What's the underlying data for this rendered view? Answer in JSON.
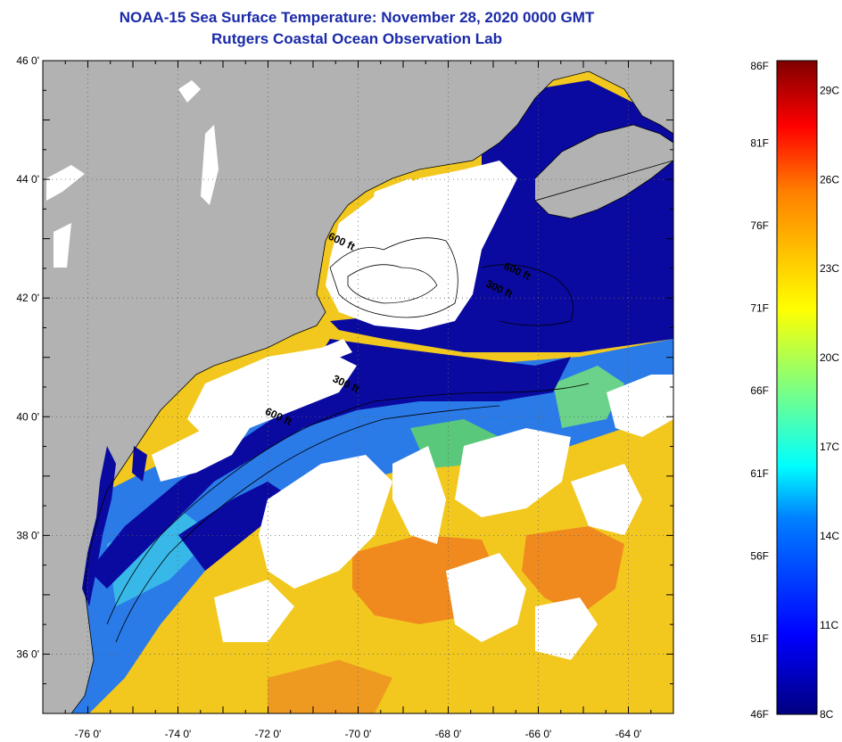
{
  "title": "NOAA-15 Sea Surface Temperature:  November 28, 2020 0000 GMT",
  "subtitle": "Rutgers Coastal Ocean Observation Lab",
  "map": {
    "lon_range": [
      -77,
      -63
    ],
    "lat_range": [
      35,
      46
    ],
    "lon_ticks": [
      {
        "value": -76,
        "label": "-76 0'"
      },
      {
        "value": -74,
        "label": "-74 0'"
      },
      {
        "value": -72,
        "label": "-72 0'"
      },
      {
        "value": -70,
        "label": "-70 0'"
      },
      {
        "value": -68,
        "label": "-68 0'"
      },
      {
        "value": -66,
        "label": "-66 0'"
      },
      {
        "value": -64,
        "label": "-64 0'"
      }
    ],
    "lat_ticks": [
      {
        "value": 46,
        "label": "46 0'"
      },
      {
        "value": 44,
        "label": "44 0'"
      },
      {
        "value": 42,
        "label": "42 0'"
      },
      {
        "value": 40,
        "label": "40 0'"
      },
      {
        "value": 38,
        "label": "38 0'"
      },
      {
        "value": 36,
        "label": "36 0'"
      }
    ],
    "depth_labels": [
      {
        "text": "600 ft",
        "lon": -70.4,
        "lat": 42.9
      },
      {
        "text": "600 ft",
        "lon": -66.5,
        "lat": 42.4
      },
      {
        "text": "300 ft",
        "lon": -66.9,
        "lat": 42.1
      },
      {
        "text": "300 ft",
        "lon": -70.3,
        "lat": 40.5
      },
      {
        "text": "600 ft",
        "lon": -71.8,
        "lat": 39.95
      }
    ],
    "colors": {
      "land": "#b2b2b2",
      "cloud": "#ffffff",
      "cold": "#0a0aa0",
      "cool": "#2a7ae8",
      "warm": "#f2c81e",
      "hot": "#f08a1e"
    }
  },
  "colorbar": {
    "range_c": [
      8,
      30
    ],
    "fahrenheit_ticks": [
      {
        "value": 86,
        "label": "86F"
      },
      {
        "value": 81,
        "label": "81F"
      },
      {
        "value": 76,
        "label": "76F"
      },
      {
        "value": 71,
        "label": "71F"
      },
      {
        "value": 66,
        "label": "66F"
      },
      {
        "value": 61,
        "label": "61F"
      },
      {
        "value": 56,
        "label": "56F"
      },
      {
        "value": 51,
        "label": "51F"
      },
      {
        "value": 46,
        "label": "46F"
      }
    ],
    "celsius_ticks": [
      {
        "value": 29,
        "label": "29C"
      },
      {
        "value": 26,
        "label": "26C"
      },
      {
        "value": 23,
        "label": "23C"
      },
      {
        "value": 20,
        "label": "20C"
      },
      {
        "value": 17,
        "label": "17C"
      },
      {
        "value": 14,
        "label": "14C"
      },
      {
        "value": 11,
        "label": "11C"
      },
      {
        "value": 8,
        "label": "8C"
      }
    ]
  }
}
